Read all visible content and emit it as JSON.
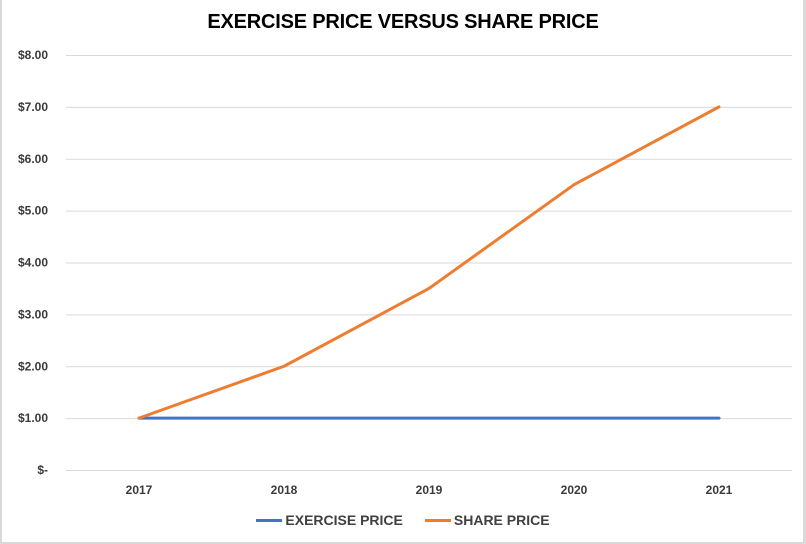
{
  "chart_data": {
    "type": "line",
    "title": "EXERCISE PRICE VERSUS SHARE PRICE",
    "categories": [
      "2017",
      "2018",
      "2019",
      "2020",
      "2021"
    ],
    "series": [
      {
        "name": "EXERCISE PRICE",
        "color": "#4472c4",
        "values": [
          1.0,
          1.0,
          1.0,
          1.0,
          1.0
        ]
      },
      {
        "name": "SHARE PRICE",
        "color": "#ed7d31",
        "values": [
          1.0,
          2.0,
          3.5,
          5.5,
          7.0
        ]
      }
    ],
    "yticks": [
      {
        "value": 0,
        "label": "$-"
      },
      {
        "value": 1,
        "label": "$1.00"
      },
      {
        "value": 2,
        "label": "$2.00"
      },
      {
        "value": 3,
        "label": "$3.00"
      },
      {
        "value": 4,
        "label": "$4.00"
      },
      {
        "value": 5,
        "label": "$5.00"
      },
      {
        "value": 6,
        "label": "$6.00"
      },
      {
        "value": 7,
        "label": "$7.00"
      },
      {
        "value": 8,
        "label": "$8.00"
      }
    ],
    "ylim": [
      0,
      8
    ],
    "xlabel": "",
    "ylabel": "",
    "grid": true,
    "gridline_color": "#d9d9d9",
    "legend_position": "bottom"
  }
}
